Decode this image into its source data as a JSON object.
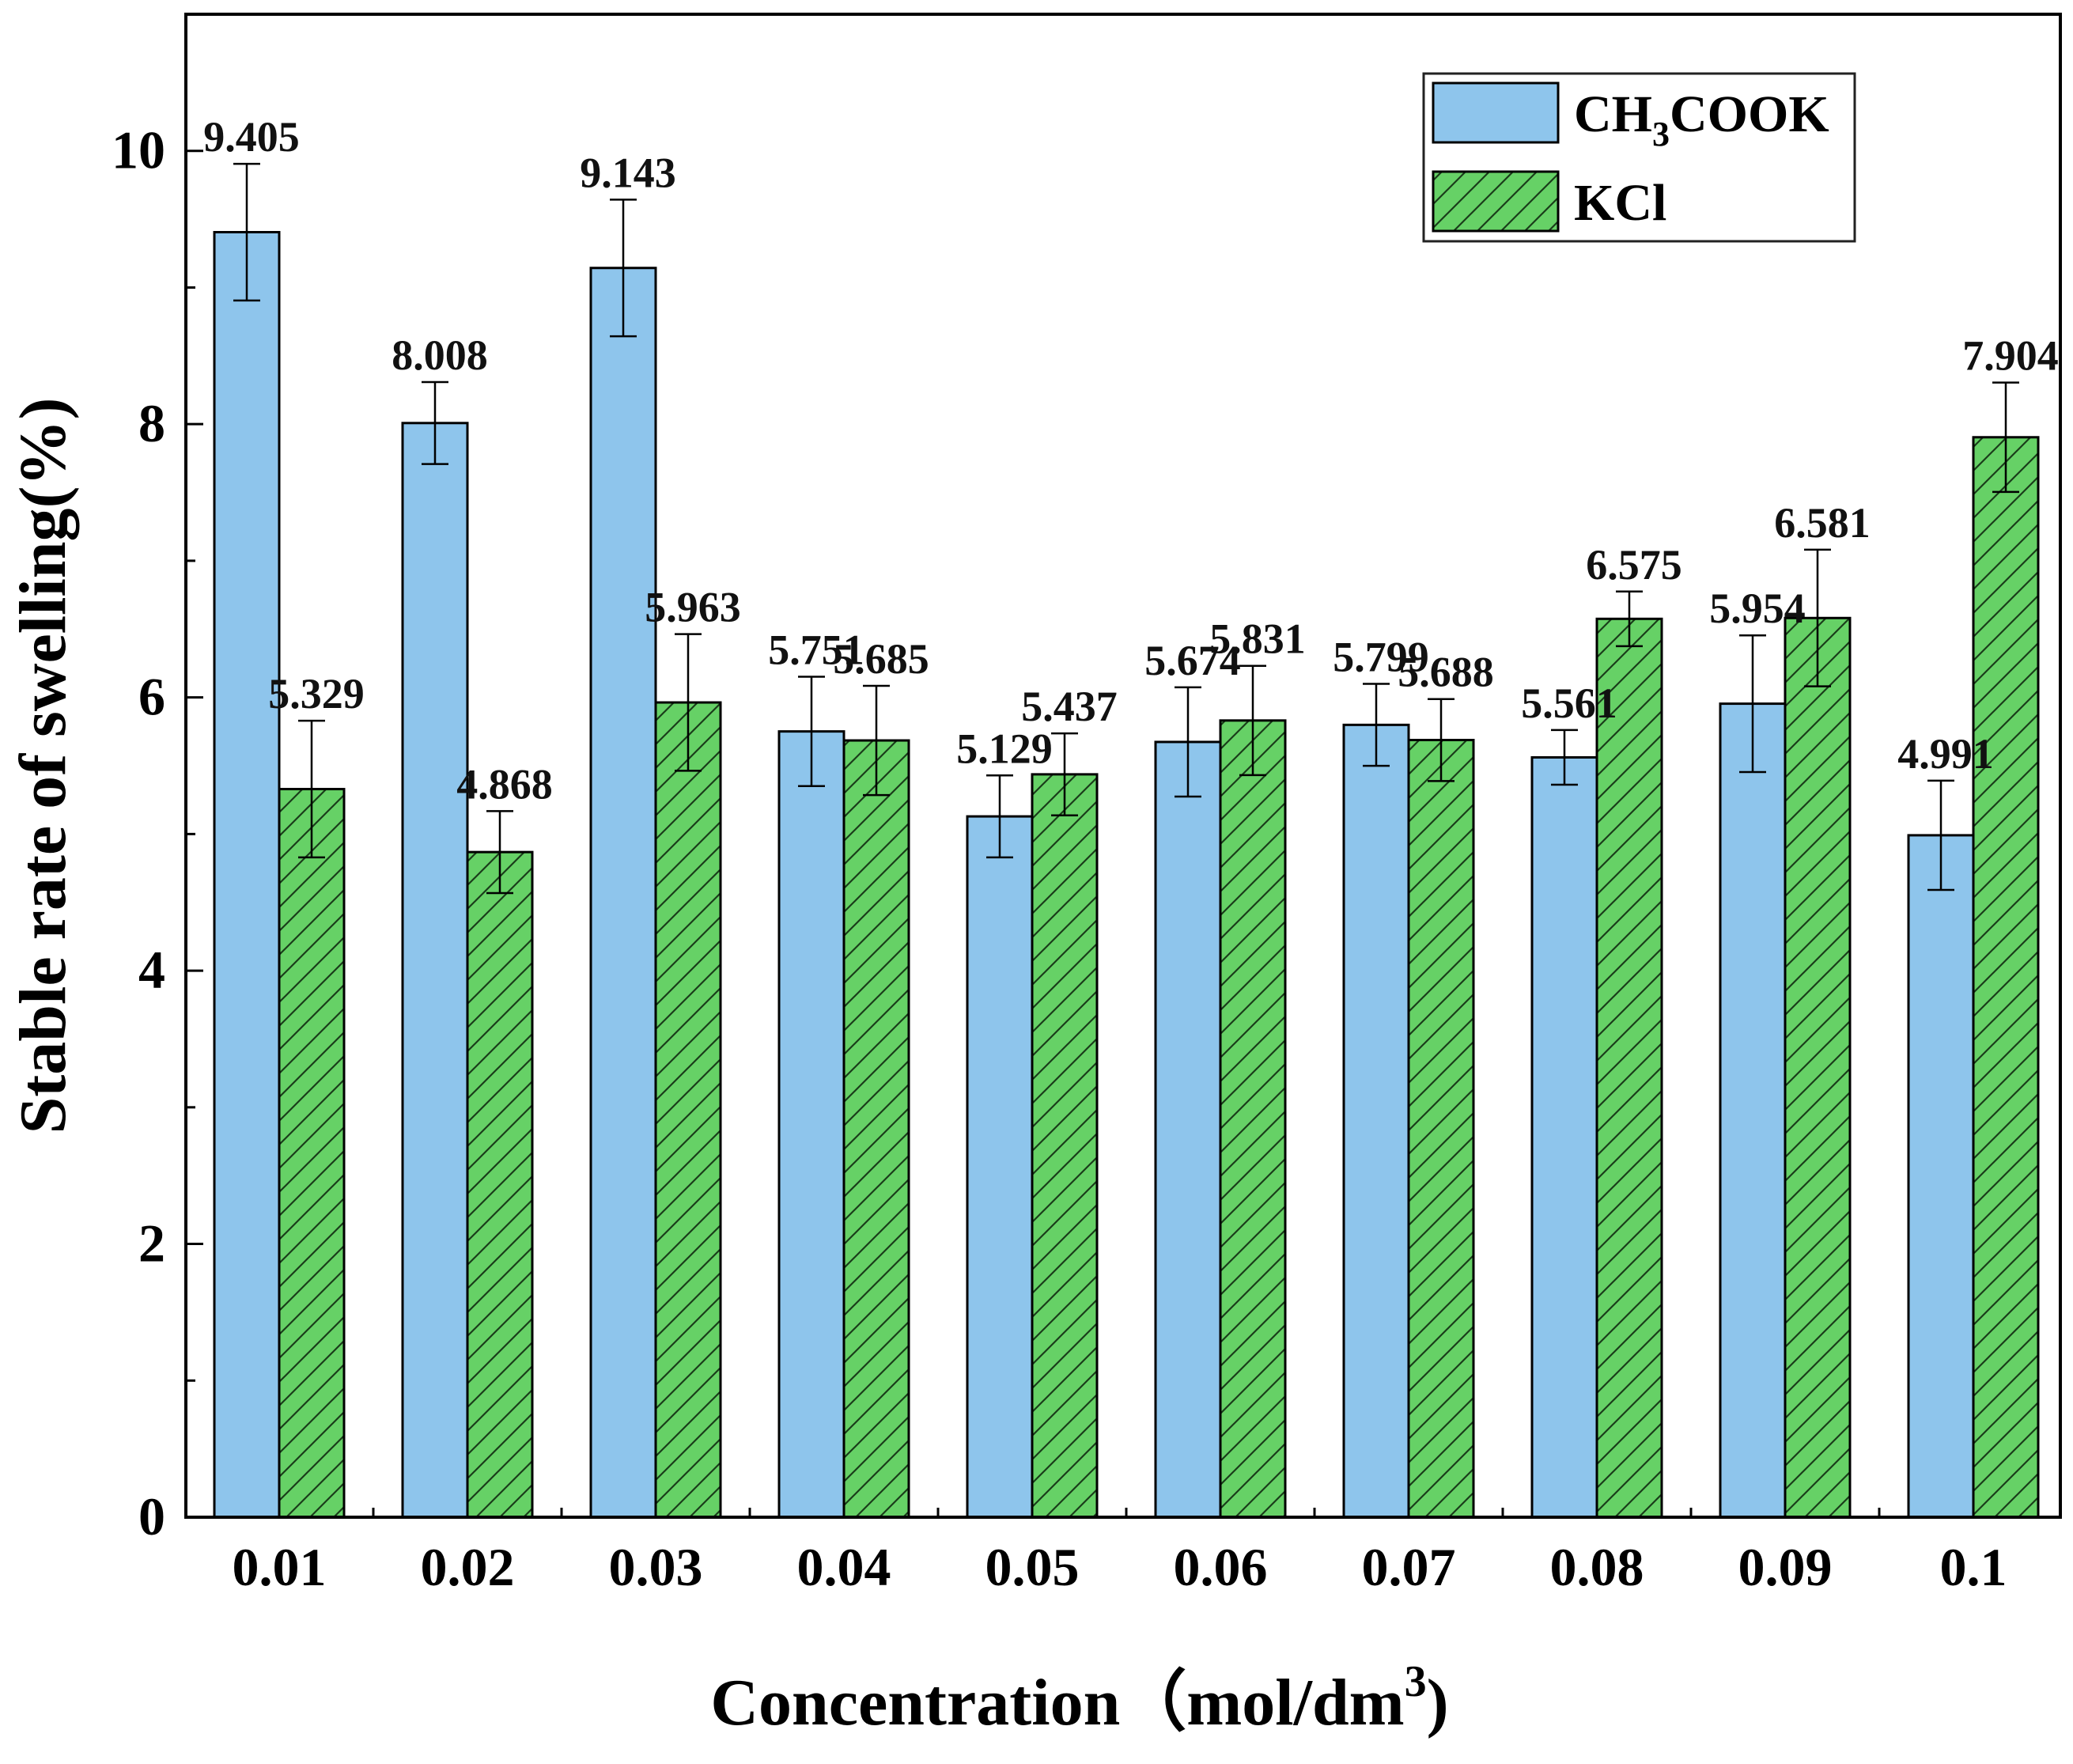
{
  "chart_data": {
    "type": "bar",
    "title": "",
    "xlabel": "Concentration（mol/dm",
    "xlabel_sup": "3",
    "xlabel_close": ")",
    "ylabel": "Stable rate of swelling(%)",
    "ylim": [
      0,
      11
    ],
    "yticks": [
      0,
      2,
      4,
      6,
      8,
      10
    ],
    "categories": [
      "0.01",
      "0.02",
      "0.03",
      "0.04",
      "0.05",
      "0.06",
      "0.07",
      "0.08",
      "0.09",
      "0.1"
    ],
    "legend_position": "top-right",
    "series": [
      {
        "name": "CH3COOK",
        "legend_main": "CH",
        "legend_sub": "3",
        "legend_rest": "COOK",
        "color": "#8ec5ec",
        "pattern": "none",
        "values": [
          9.405,
          8.008,
          9.143,
          5.751,
          5.129,
          5.674,
          5.799,
          5.561,
          5.954,
          4.991
        ],
        "labels": [
          "9.405",
          "8.008",
          "9.143",
          "5.751",
          "5.129",
          "5.674",
          "5.799",
          "5.561",
          "5.954",
          "4.991"
        ],
        "errors": [
          0.5,
          0.3,
          0.5,
          0.4,
          0.3,
          0.4,
          0.3,
          0.2,
          0.5,
          0.4
        ]
      },
      {
        "name": "KCl",
        "color": "#66d166",
        "pattern": "hatch",
        "values": [
          5.329,
          4.868,
          5.963,
          5.685,
          5.437,
          5.831,
          5.688,
          6.575,
          6.581,
          7.904
        ],
        "labels": [
          "5.329",
          "4.868",
          "5.963",
          "5.685",
          "5.437",
          "5.831",
          "5.688",
          "6.575",
          "6.581",
          "7.904"
        ],
        "errors": [
          0.5,
          0.3,
          0.5,
          0.4,
          0.3,
          0.4,
          0.3,
          0.2,
          0.5,
          0.4
        ]
      }
    ]
  }
}
